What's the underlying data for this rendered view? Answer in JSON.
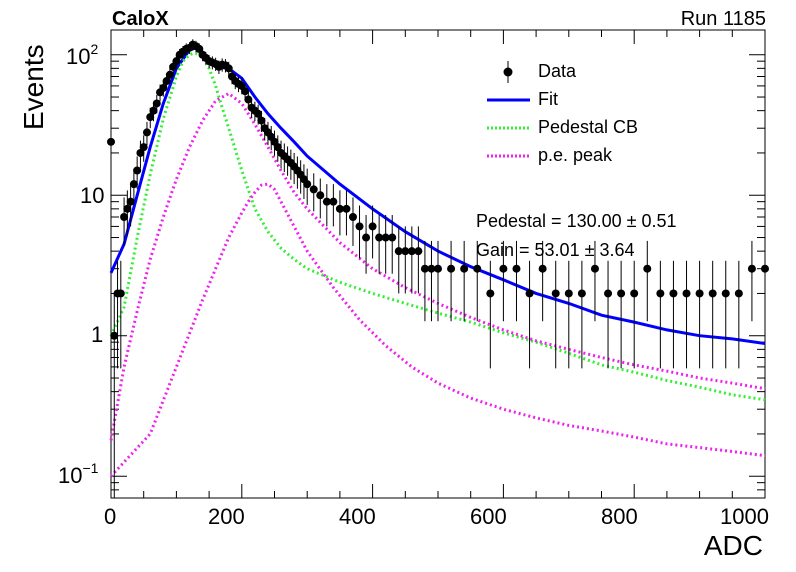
{
  "header": {
    "experiment": "CaloX",
    "run": "Run 1185"
  },
  "chart_data": {
    "type": "line",
    "title": "",
    "xlabel": "ADC",
    "ylabel": "Events",
    "xlim": [
      0,
      1000
    ],
    "ylim": [
      0.07,
      150
    ],
    "yscale": "log",
    "grid": false,
    "legend_position": "top-right",
    "x_ticks": [
      "0",
      "200",
      "400",
      "600",
      "800",
      "1000"
    ],
    "y_ticks": [
      {
        "value": 0.1,
        "base": "10",
        "exp": "−1"
      },
      {
        "value": 1,
        "label": "1"
      },
      {
        "value": 10,
        "label": "10"
      },
      {
        "value": 100,
        "base": "10",
        "exp": "2"
      }
    ],
    "legend": [
      {
        "label": "Data",
        "style": "marker",
        "color": "#000000"
      },
      {
        "label": "Fit",
        "style": "solid",
        "color": "#0000ff"
      },
      {
        "label": "Pedestal CB",
        "style": "dotted",
        "color": "#33ee33"
      },
      {
        "label": "p.e. peak",
        "style": "dotted",
        "color": "#ee22ee"
      }
    ],
    "annotations": [
      "Pedestal = 130.00 ± 0.51",
      "Gain = 53.01 ± 3.64"
    ],
    "series": [
      {
        "name": "Data",
        "kind": "points_with_errors",
        "color": "#000000",
        "x": [
          0,
          5,
          10,
          15,
          20,
          25,
          30,
          35,
          40,
          45,
          50,
          55,
          60,
          65,
          70,
          75,
          80,
          85,
          90,
          95,
          100,
          105,
          110,
          115,
          120,
          125,
          130,
          135,
          140,
          145,
          150,
          155,
          160,
          165,
          170,
          175,
          180,
          185,
          190,
          195,
          200,
          205,
          210,
          215,
          220,
          225,
          230,
          235,
          240,
          245,
          250,
          255,
          260,
          265,
          270,
          275,
          280,
          285,
          290,
          295,
          300,
          310,
          320,
          330,
          340,
          350,
          360,
          370,
          380,
          390,
          400,
          410,
          420,
          430,
          440,
          450,
          460,
          470,
          480,
          490,
          500,
          520,
          540,
          560,
          580,
          600,
          620,
          640,
          660,
          680,
          700,
          720,
          740,
          760,
          780,
          800,
          820,
          840,
          860,
          880,
          900,
          920,
          940,
          960,
          980,
          1000
        ],
        "y": [
          24,
          1,
          2,
          2,
          7,
          8,
          9,
          12,
          15,
          20,
          22,
          28,
          36,
          40,
          45,
          54,
          58,
          65,
          72,
          82,
          90,
          100,
          105,
          110,
          112,
          118,
          115,
          110,
          100,
          95,
          90,
          88,
          86,
          82,
          85,
          84,
          80,
          70,
          65,
          62,
          60,
          55,
          48,
          42,
          40,
          38,
          34,
          30,
          28,
          26,
          24,
          22,
          20,
          19,
          18,
          17,
          16,
          15,
          14,
          13,
          12,
          11,
          10,
          9,
          9,
          8,
          8,
          7,
          6,
          5,
          6,
          5,
          5,
          5,
          4,
          4,
          4,
          4,
          3,
          3,
          3,
          3,
          3,
          3,
          2,
          3,
          3,
          2,
          3,
          2,
          2,
          2,
          3,
          2,
          2,
          2,
          3,
          2,
          2,
          2,
          2,
          2,
          2,
          2,
          3,
          3
        ]
      },
      {
        "name": "Fit",
        "kind": "curve",
        "color": "#0000ff",
        "x": [
          0,
          20,
          40,
          60,
          80,
          100,
          120,
          130,
          140,
          160,
          180,
          200,
          220,
          240,
          260,
          280,
          300,
          350,
          400,
          450,
          500,
          550,
          600,
          650,
          700,
          750,
          800,
          850,
          900,
          950,
          1000
        ],
        "y": [
          2.8,
          4.5,
          10,
          22,
          45,
          80,
          108,
          112,
          100,
          82,
          80,
          68,
          50,
          38,
          30,
          24,
          19,
          12,
          8,
          5.5,
          4,
          3.1,
          2.5,
          2,
          1.7,
          1.4,
          1.25,
          1.1,
          1.0,
          0.95,
          0.88
        ]
      },
      {
        "name": "Pedestal CB",
        "kind": "curve",
        "color": "#33ee33",
        "x": [
          0,
          20,
          40,
          60,
          80,
          100,
          110,
          120,
          125,
          130,
          135,
          140,
          150,
          160,
          170,
          180,
          200,
          220,
          240,
          260,
          280,
          300,
          350,
          400,
          450,
          500,
          550,
          600,
          650,
          700,
          750,
          800,
          850,
          900,
          950,
          1000
        ],
        "y": [
          1.0,
          1.6,
          5,
          14,
          35,
          70,
          90,
          100,
          102,
          102,
          100,
          95,
          80,
          60,
          42,
          30,
          15,
          8,
          5.5,
          4.2,
          3.5,
          3.0,
          2.4,
          2.0,
          1.7,
          1.45,
          1.25,
          1.05,
          0.9,
          0.75,
          0.62,
          0.55,
          0.48,
          0.43,
          0.38,
          0.35
        ]
      },
      {
        "name": "p.e. peak",
        "kind": "curve",
        "color": "#ee22ee",
        "x": [
          0,
          20,
          40,
          60,
          80,
          100,
          120,
          140,
          160,
          180,
          200,
          220,
          240,
          260,
          280,
          300,
          350,
          400,
          450,
          500,
          550,
          600,
          650,
          700,
          750,
          800,
          850,
          900,
          950,
          1000
        ],
        "y": [
          0.18,
          0.6,
          1.5,
          3.5,
          7,
          13,
          22,
          34,
          47,
          53,
          45,
          32,
          22,
          15,
          10.5,
          8,
          4.6,
          3,
          2.2,
          1.7,
          1.35,
          1.1,
          0.92,
          0.8,
          0.7,
          0.62,
          0.56,
          0.5,
          0.46,
          0.42
        ]
      },
      {
        "name": "",
        "kind": "curve",
        "color": "#ee22ee",
        "x": [
          0,
          60,
          100,
          140,
          160,
          180,
          200,
          210,
          220,
          230,
          240,
          250,
          260,
          280,
          300,
          340,
          380,
          420,
          460,
          500,
          550,
          600,
          650,
          700,
          750,
          800,
          850,
          900,
          950,
          1000
        ],
        "y": [
          0.1,
          0.2,
          0.6,
          1.8,
          3,
          5,
          7.5,
          9,
          10.5,
          11.8,
          12,
          11,
          9,
          6,
          4,
          2.2,
          1.3,
          0.85,
          0.6,
          0.46,
          0.36,
          0.3,
          0.26,
          0.23,
          0.21,
          0.19,
          0.17,
          0.16,
          0.15,
          0.14
        ]
      }
    ]
  }
}
